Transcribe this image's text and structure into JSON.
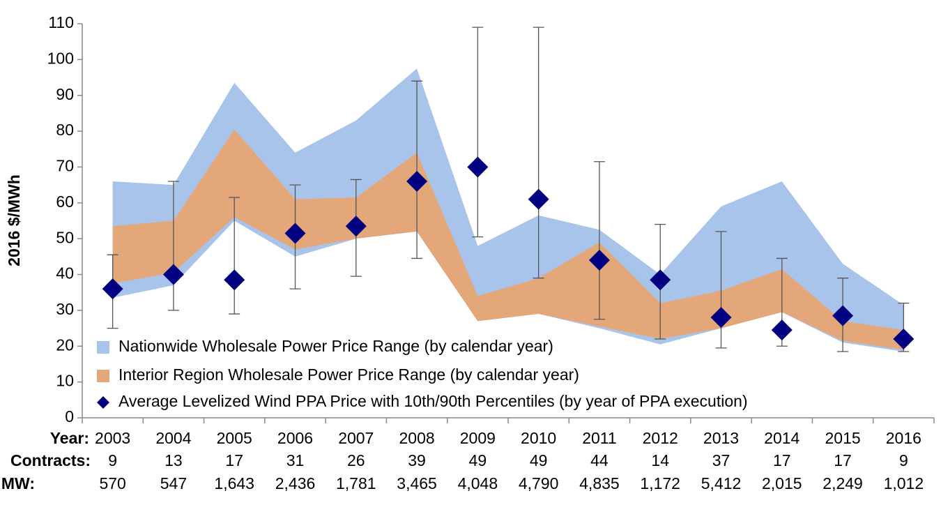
{
  "chart_data": {
    "type": "range-area-errorbar",
    "y_label": "2016 $/MWh",
    "ylim": [
      0,
      110
    ],
    "yticks": [
      0,
      10,
      20,
      30,
      40,
      50,
      60,
      70,
      80,
      90,
      100,
      110
    ],
    "categories": [
      "2003",
      "2004",
      "2005",
      "2006",
      "2007",
      "2008",
      "2009",
      "2010",
      "2011",
      "2012",
      "2013",
      "2014",
      "2015",
      "2016"
    ],
    "category_row_label": "Year:",
    "series": [
      {
        "name": "Nationwide Wholesale Power Price Range (by calendar year)",
        "color": "#a9c4ea",
        "low": [
          33.5,
          37,
          55,
          45,
          50,
          52,
          27,
          29,
          25,
          20.5,
          25,
          29.5,
          21,
          18.5
        ],
        "high": [
          66,
          65,
          93.5,
          74,
          83,
          97.5,
          48,
          56.5,
          52.5,
          40,
          59,
          66,
          43,
          31.5
        ]
      },
      {
        "name": "Interior Region Wholesale Power Price Range (by calendar year)",
        "color": "#e3a77a",
        "low": [
          37.5,
          40.5,
          56,
          47,
          50,
          52,
          27,
          29,
          25.5,
          22,
          25,
          29.5,
          21.5,
          19
        ],
        "high": [
          53.5,
          55,
          80.5,
          61,
          61.5,
          74,
          34,
          39,
          49,
          32,
          35.5,
          41.5,
          27,
          24.5
        ]
      },
      {
        "name": "Average Levelized Wind PPA Price with 10th/90th Percentiles (by year of PPA execution)",
        "color": "#000080",
        "values": [
          36,
          40,
          38.5,
          51.5,
          53.5,
          66,
          70,
          61,
          44,
          38.5,
          28,
          24.5,
          28.5,
          22
        ],
        "low": [
          25,
          30,
          29,
          36,
          39.5,
          44.5,
          50.5,
          39,
          27.5,
          22,
          19.5,
          20,
          18.5,
          18.5
        ],
        "high": [
          45.5,
          66,
          61.5,
          65,
          66.5,
          94,
          109,
          109,
          71.5,
          54,
          52,
          44.5,
          39,
          32
        ]
      }
    ],
    "rows": [
      {
        "label": "Contracts:",
        "values": [
          9,
          13,
          17,
          31,
          26,
          39,
          49,
          49,
          44,
          14,
          37,
          17,
          17,
          9
        ]
      },
      {
        "label": "MW:",
        "values": [
          570,
          547,
          1643,
          2436,
          1781,
          3465,
          4048,
          4790,
          4835,
          1172,
          5412,
          2015,
          2249,
          1012
        ],
        "value_labels": [
          "570",
          "547",
          "1,643",
          "2,436",
          "1,781",
          "3,465",
          "4,048",
          "4,790",
          "4,835",
          "1,172",
          "5,412",
          "2,015",
          "2,249",
          "1,012"
        ]
      }
    ]
  }
}
